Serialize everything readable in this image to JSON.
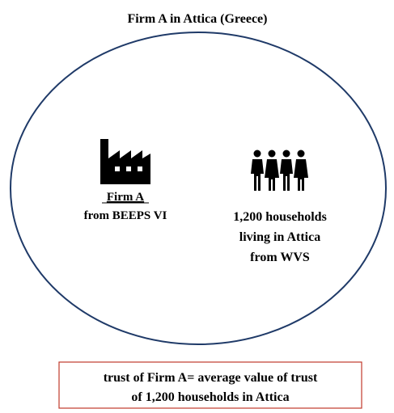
{
  "title": "Firm A in Attica (Greece)",
  "firm": {
    "name": "Firm A",
    "source": "from BEEPS VI"
  },
  "households": {
    "lines": [
      "1,200 households",
      "living in Attica",
      "from WVS"
    ]
  },
  "note": {
    "lines": [
      "trust of Firm A= average value of trust",
      "of 1,200 households in Attica"
    ]
  }
}
